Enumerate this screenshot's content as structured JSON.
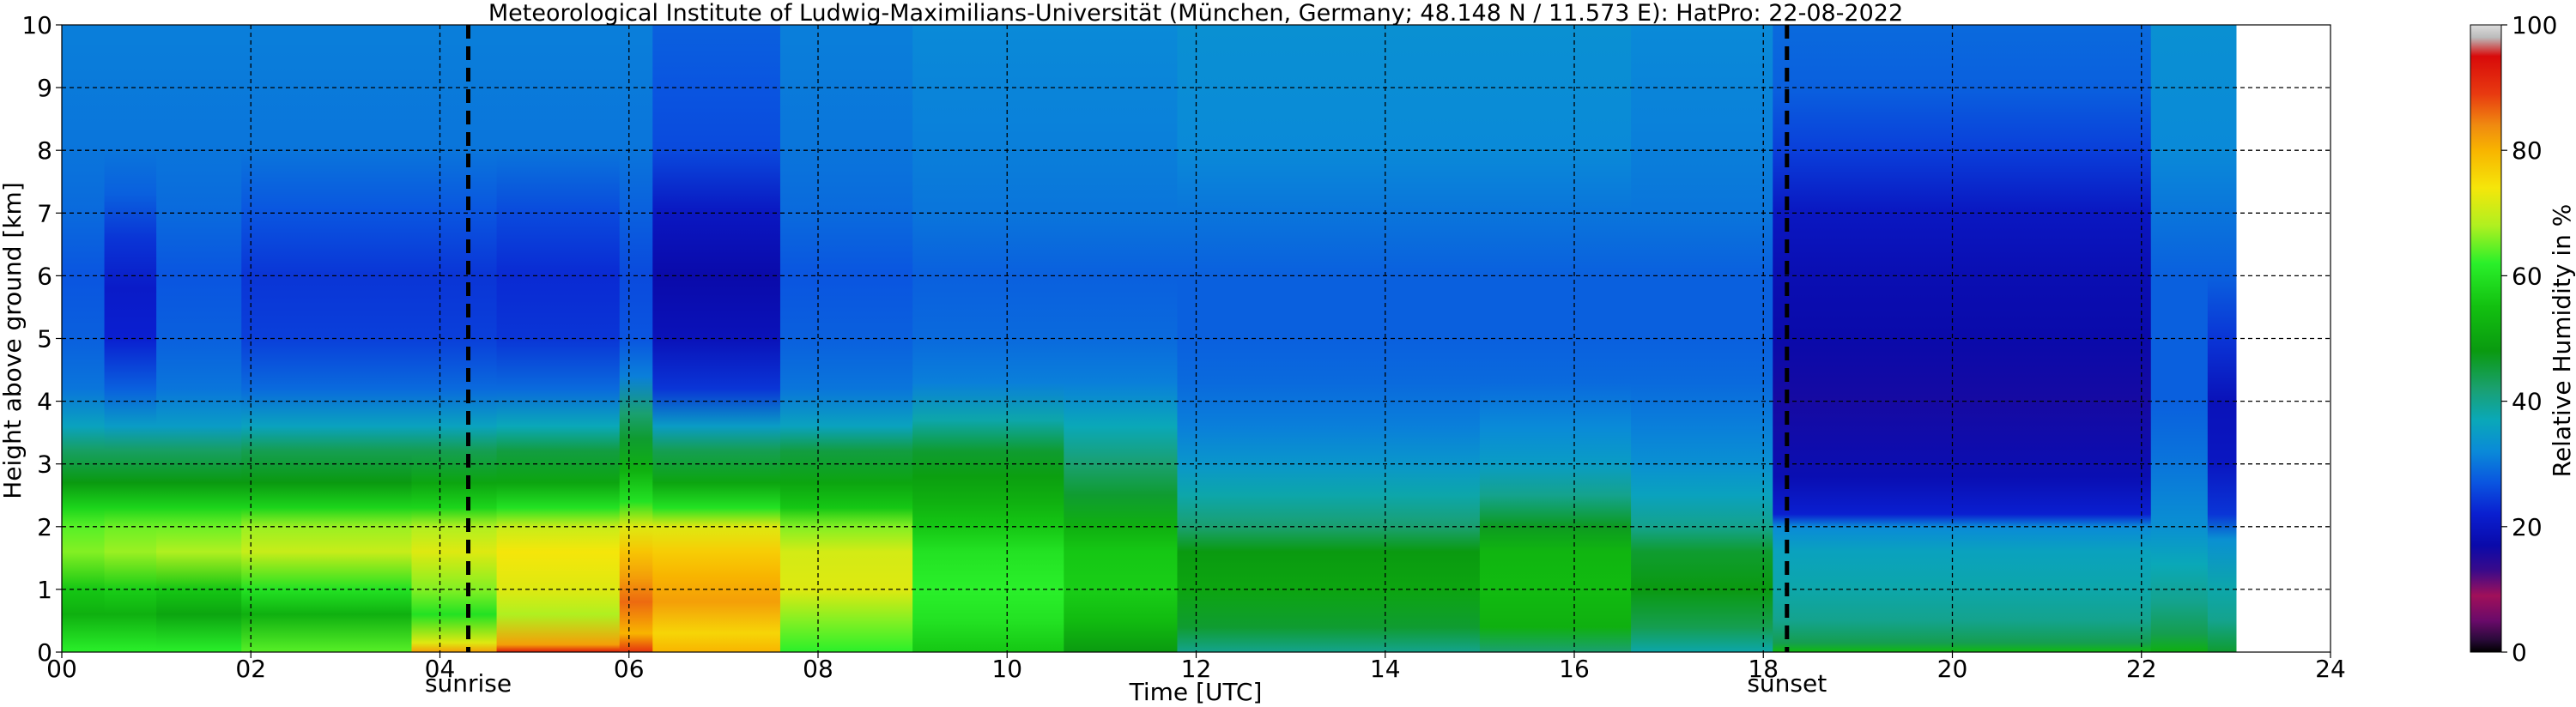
{
  "chart_data": {
    "type": "heatmap",
    "title": "Meteorological Institute of Ludwig-Maximilians-Universität (München, Germany; 48.148 N / 11.573 E):    HatPro: 22-08-2022",
    "xlabel": "Time [UTC]",
    "ylabel": "Height above ground [km]",
    "xlim": [
      0,
      24
    ],
    "ylim": [
      0,
      10
    ],
    "x_ticks": [
      "00",
      "02",
      "04",
      "06",
      "08",
      "10",
      "12",
      "14",
      "16",
      "18",
      "20",
      "22",
      "24"
    ],
    "y_ticks": [
      "0",
      "1",
      "2",
      "3",
      "4",
      "5",
      "6",
      "7",
      "8",
      "9",
      "10"
    ],
    "grid": true,
    "data_end_hour": 23.0,
    "markers": [
      {
        "label": "sunrise",
        "hour": 4.3
      },
      {
        "label": "sunset",
        "hour": 18.25
      }
    ],
    "colorbar": {
      "label": "Relative Humidity in %",
      "min": 0,
      "max": 100,
      "ticks": [
        "0",
        "20",
        "40",
        "60",
        "80",
        "100"
      ],
      "colors": [
        {
          "v": 0,
          "c": "#000000"
        },
        {
          "v": 2,
          "c": "#2a0a3a"
        },
        {
          "v": 5,
          "c": "#6a0a6a"
        },
        {
          "v": 9,
          "c": "#a0105a"
        },
        {
          "v": 13,
          "c": "#3a0a8a"
        },
        {
          "v": 17,
          "c": "#0a0aaa"
        },
        {
          "v": 22,
          "c": "#0a1fd0"
        },
        {
          "v": 27,
          "c": "#0a55e0"
        },
        {
          "v": 32,
          "c": "#0a8ad8"
        },
        {
          "v": 37,
          "c": "#0aa8b8"
        },
        {
          "v": 42,
          "c": "#1aa070"
        },
        {
          "v": 48,
          "c": "#0a9a10"
        },
        {
          "v": 55,
          "c": "#12c010"
        },
        {
          "v": 62,
          "c": "#2af02a"
        },
        {
          "v": 68,
          "c": "#b0f020"
        },
        {
          "v": 74,
          "c": "#f5e60a"
        },
        {
          "v": 80,
          "c": "#f8b400"
        },
        {
          "v": 84,
          "c": "#f08a10"
        },
        {
          "v": 89,
          "c": "#e83a10"
        },
        {
          "v": 95,
          "c": "#d80a0a"
        },
        {
          "v": 98,
          "c": "#bbbbbb"
        },
        {
          "v": 100,
          "c": "#dddddd"
        }
      ]
    },
    "rh_profile_segments": [
      {
        "t0": 0.0,
        "t1": 0.45,
        "rh": [
          [
            0,
            62
          ],
          [
            0.6,
            52
          ],
          [
            1.0,
            56
          ],
          [
            1.6,
            66
          ],
          [
            2.0,
            64
          ],
          [
            2.3,
            58
          ],
          [
            2.7,
            48
          ],
          [
            3.2,
            43
          ],
          [
            3.6,
            36
          ],
          [
            4.2,
            30
          ],
          [
            5.0,
            28
          ],
          [
            6.0,
            27
          ],
          [
            7.0,
            29
          ],
          [
            8.0,
            30
          ],
          [
            10.0,
            31
          ]
        ]
      },
      {
        "t0": 0.45,
        "t1": 1.0,
        "rh": [
          [
            0,
            62
          ],
          [
            0.6,
            52
          ],
          [
            1.0,
            57
          ],
          [
            1.6,
            67
          ],
          [
            2.0,
            65
          ],
          [
            2.3,
            58
          ],
          [
            2.7,
            48
          ],
          [
            3.2,
            43
          ],
          [
            3.6,
            35
          ],
          [
            4.2,
            28
          ],
          [
            5.0,
            22
          ],
          [
            5.8,
            21
          ],
          [
            6.6,
            24
          ],
          [
            7.3,
            28
          ],
          [
            8.0,
            30
          ],
          [
            10.0,
            31
          ]
        ]
      },
      {
        "t0": 1.0,
        "t1": 1.9,
        "rh": [
          [
            0,
            62
          ],
          [
            0.6,
            50
          ],
          [
            1.0,
            56
          ],
          [
            1.6,
            68
          ],
          [
            2.0,
            65
          ],
          [
            2.3,
            58
          ],
          [
            2.7,
            48
          ],
          [
            3.2,
            43
          ],
          [
            3.6,
            35
          ],
          [
            4.2,
            30
          ],
          [
            5.0,
            28
          ],
          [
            6.0,
            27
          ],
          [
            7.0,
            29
          ],
          [
            8.0,
            30
          ],
          [
            10.0,
            31
          ]
        ]
      },
      {
        "t0": 1.9,
        "t1": 3.7,
        "rh": [
          [
            0,
            64
          ],
          [
            0.6,
            52
          ],
          [
            1.0,
            60
          ],
          [
            1.6,
            70
          ],
          [
            2.0,
            67
          ],
          [
            2.3,
            58
          ],
          [
            2.7,
            48
          ],
          [
            3.2,
            44
          ],
          [
            3.6,
            36
          ],
          [
            4.2,
            29
          ],
          [
            5.0,
            25
          ],
          [
            6.0,
            24
          ],
          [
            7.0,
            27
          ],
          [
            8.0,
            30
          ],
          [
            10.0,
            31
          ]
        ]
      },
      {
        "t0": 3.7,
        "t1": 4.6,
        "rh": [
          [
            0,
            82
          ],
          [
            0.15,
            72
          ],
          [
            0.6,
            60
          ],
          [
            1.0,
            66
          ],
          [
            1.6,
            72
          ],
          [
            2.0,
            68
          ],
          [
            2.3,
            58
          ],
          [
            2.7,
            50
          ],
          [
            3.2,
            44
          ],
          [
            3.6,
            36
          ],
          [
            4.2,
            29
          ],
          [
            5.0,
            25
          ],
          [
            6.0,
            24
          ],
          [
            7.0,
            27
          ],
          [
            8.0,
            30
          ],
          [
            10.0,
            31
          ]
        ]
      },
      {
        "t0": 4.6,
        "t1": 5.9,
        "rh": [
          [
            0,
            93
          ],
          [
            0.12,
            82
          ],
          [
            0.6,
            68
          ],
          [
            1.0,
            72
          ],
          [
            1.6,
            74
          ],
          [
            2.0,
            70
          ],
          [
            2.3,
            60
          ],
          [
            2.7,
            50
          ],
          [
            3.2,
            45
          ],
          [
            3.6,
            37
          ],
          [
            4.2,
            29
          ],
          [
            5.0,
            24
          ],
          [
            6.0,
            23
          ],
          [
            7.0,
            26
          ],
          [
            8.0,
            30
          ],
          [
            10.0,
            31
          ]
        ]
      },
      {
        "t0": 5.9,
        "t1": 6.25,
        "rh": [
          [
            0,
            90
          ],
          [
            0.3,
            80
          ],
          [
            0.8,
            86
          ],
          [
            1.2,
            82
          ],
          [
            1.6,
            78
          ],
          [
            2.0,
            72
          ],
          [
            2.4,
            60
          ],
          [
            2.9,
            52
          ],
          [
            3.4,
            46
          ],
          [
            3.8,
            42
          ],
          [
            4.4,
            31
          ],
          [
            5.0,
            27
          ],
          [
            6.0,
            26
          ],
          [
            7.0,
            28
          ],
          [
            8.0,
            30
          ],
          [
            10.0,
            31
          ]
        ]
      },
      {
        "t0": 6.25,
        "t1": 7.6,
        "rh": [
          [
            0,
            80
          ],
          [
            0.3,
            76
          ],
          [
            0.8,
            82
          ],
          [
            1.2,
            80
          ],
          [
            1.6,
            77
          ],
          [
            2.0,
            72
          ],
          [
            2.3,
            60
          ],
          [
            2.7,
            50
          ],
          [
            3.2,
            44
          ],
          [
            3.6,
            35
          ],
          [
            4.2,
            24
          ],
          [
            5.0,
            19
          ],
          [
            6.0,
            17
          ],
          [
            7.0,
            20
          ],
          [
            8.0,
            26
          ],
          [
            9.0,
            27
          ],
          [
            10.0,
            28
          ]
        ]
      },
      {
        "t0": 7.6,
        "t1": 9.0,
        "rh": [
          [
            0,
            62
          ],
          [
            0.5,
            66
          ],
          [
            1.0,
            72
          ],
          [
            1.6,
            71
          ],
          [
            2.0,
            66
          ],
          [
            2.3,
            56
          ],
          [
            2.7,
            50
          ],
          [
            3.2,
            45
          ],
          [
            3.6,
            36
          ],
          [
            4.2,
            30
          ],
          [
            5.0,
            28
          ],
          [
            6.0,
            27
          ],
          [
            7.0,
            29
          ],
          [
            8.0,
            30
          ],
          [
            10.0,
            31
          ]
        ]
      },
      {
        "t0": 9.0,
        "t1": 10.6,
        "rh": [
          [
            0,
            56
          ],
          [
            0.5,
            60
          ],
          [
            1.0,
            62
          ],
          [
            1.6,
            60
          ],
          [
            2.0,
            56
          ],
          [
            2.4,
            52
          ],
          [
            2.8,
            49
          ],
          [
            3.2,
            46
          ],
          [
            3.7,
            38
          ],
          [
            4.3,
            31
          ],
          [
            5.0,
            29
          ],
          [
            6.0,
            28
          ],
          [
            7.0,
            30
          ],
          [
            8.0,
            31
          ],
          [
            10.0,
            32
          ]
        ]
      },
      {
        "t0": 10.6,
        "t1": 11.8,
        "rh": [
          [
            0,
            48
          ],
          [
            0.5,
            54
          ],
          [
            1.0,
            57
          ],
          [
            1.6,
            56
          ],
          [
            2.0,
            52
          ],
          [
            2.5,
            46
          ],
          [
            3.0,
            42
          ],
          [
            3.6,
            37
          ],
          [
            4.3,
            31
          ],
          [
            5.0,
            29
          ],
          [
            6.0,
            28
          ],
          [
            7.0,
            30
          ],
          [
            8.0,
            31
          ],
          [
            10.0,
            32
          ]
        ]
      },
      {
        "t0": 11.8,
        "t1": 15.0,
        "rh": [
          [
            0,
            40
          ],
          [
            0.4,
            46
          ],
          [
            1.0,
            50
          ],
          [
            1.6,
            48
          ],
          [
            2.0,
            42
          ],
          [
            2.5,
            38
          ],
          [
            3.0,
            34
          ],
          [
            3.6,
            31
          ],
          [
            4.3,
            29
          ],
          [
            5.0,
            28
          ],
          [
            6.0,
            28
          ],
          [
            7.0,
            30
          ],
          [
            8.0,
            32
          ],
          [
            10.0,
            33
          ]
        ]
      },
      {
        "t0": 15.0,
        "t1": 16.6,
        "rh": [
          [
            0,
            42
          ],
          [
            0.4,
            52
          ],
          [
            1.0,
            54
          ],
          [
            1.6,
            53
          ],
          [
            2.0,
            47
          ],
          [
            2.5,
            40
          ],
          [
            3.0,
            35
          ],
          [
            3.6,
            32
          ],
          [
            4.3,
            29
          ],
          [
            5.0,
            28
          ],
          [
            6.0,
            28
          ],
          [
            7.0,
            30
          ],
          [
            8.0,
            32
          ],
          [
            10.0,
            33
          ]
        ]
      },
      {
        "t0": 16.6,
        "t1": 18.1,
        "rh": [
          [
            0,
            38
          ],
          [
            0.4,
            44
          ],
          [
            1.0,
            48
          ],
          [
            1.6,
            46
          ],
          [
            2.0,
            40
          ],
          [
            2.5,
            36
          ],
          [
            3.0,
            33
          ],
          [
            3.6,
            31
          ],
          [
            4.3,
            29
          ],
          [
            5.0,
            28
          ],
          [
            6.0,
            28
          ],
          [
            7.0,
            30
          ],
          [
            8.0,
            31
          ],
          [
            10.0,
            32
          ]
        ]
      },
      {
        "t0": 18.1,
        "t1": 22.1,
        "rh": [
          [
            0,
            54
          ],
          [
            0.15,
            44
          ],
          [
            0.5,
            40
          ],
          [
            1.0,
            38
          ],
          [
            1.6,
            36
          ],
          [
            2.0,
            32
          ],
          [
            2.2,
            22
          ],
          [
            2.8,
            18
          ],
          [
            4.0,
            16
          ],
          [
            5.0,
            17
          ],
          [
            6.0,
            18
          ],
          [
            7.0,
            20
          ],
          [
            8.0,
            25
          ],
          [
            9.0,
            28
          ],
          [
            10.0,
            29
          ]
        ]
      },
      {
        "t0": 22.1,
        "t1": 22.7,
        "rh": [
          [
            0,
            52
          ],
          [
            0.3,
            44
          ],
          [
            0.8,
            40
          ],
          [
            1.4,
            37
          ],
          [
            2.0,
            33
          ],
          [
            3.0,
            30
          ],
          [
            4.0,
            28
          ],
          [
            5.0,
            28
          ],
          [
            6.0,
            28
          ],
          [
            7.0,
            30
          ],
          [
            8.0,
            32
          ],
          [
            10.0,
            33
          ]
        ]
      },
      {
        "t0": 22.7,
        "t1": 23.0,
        "rh": [
          [
            0,
            46
          ],
          [
            0.5,
            40
          ],
          [
            1.0,
            38
          ],
          [
            1.8,
            33
          ],
          [
            2.2,
            24
          ],
          [
            3.0,
            20
          ],
          [
            4.0,
            19
          ],
          [
            5.0,
            24
          ],
          [
            6.0,
            28
          ],
          [
            7.0,
            30
          ],
          [
            8.0,
            32
          ],
          [
            10.0,
            33
          ]
        ]
      }
    ]
  }
}
